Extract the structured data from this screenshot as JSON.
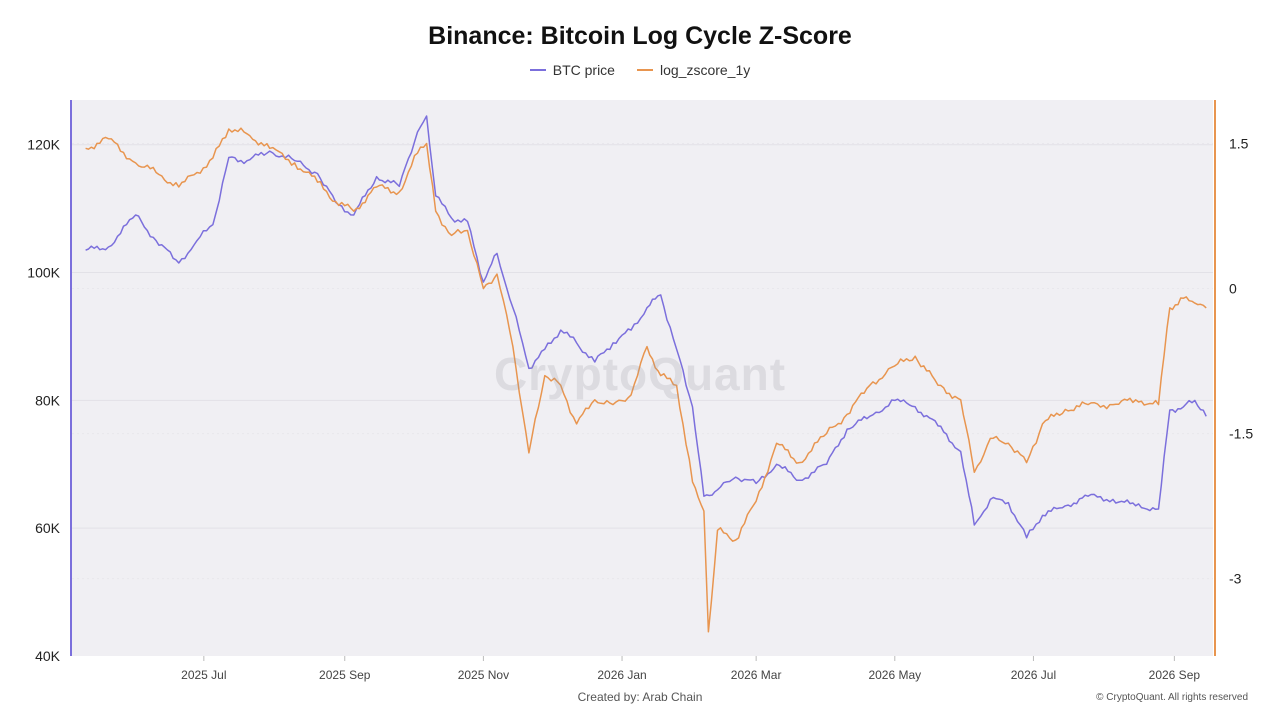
{
  "header": {
    "title": "Binance: Bitcoin Log Cycle Z-Score"
  },
  "legend": [
    {
      "label": "BTC price",
      "color": "#7b6fdc"
    },
    {
      "label": "log_zscore_1y",
      "color": "#e8954f"
    }
  ],
  "watermark": "CryptoQuant",
  "footer": {
    "creator": "Created by: Arab Chain",
    "copyright": "© CryptoQuant. All rights reserved"
  },
  "chart_data": {
    "type": "line",
    "title": "Binance: Bitcoin Log Cycle Z-Score",
    "x_ticks": [
      "2025 Jul",
      "2025 Sep",
      "2025 Nov",
      "2026 Jan",
      "2026 Mar",
      "2026 May",
      "2026 Jul",
      "2026 Sep"
    ],
    "y_left": {
      "ticks": [
        "40K",
        "60K",
        "80K",
        "100K",
        "120K"
      ],
      "lim": [
        40000,
        127000
      ],
      "color": "#7b6fdc"
    },
    "y_right": {
      "ticks": [
        "1.5",
        "0",
        "-1.5",
        "-3"
      ],
      "lim": [
        -3.8,
        1.95
      ],
      "color": "#e8954f"
    },
    "grid": true,
    "legend_position": "top-center",
    "series": [
      {
        "name": "BTC price",
        "axis": "left",
        "color": "#7b6fdc",
        "x": [
          "2025-05-10",
          "2025-05-20",
          "2025-06-01",
          "2025-06-10",
          "2025-06-20",
          "2025-06-28",
          "2025-07-05",
          "2025-07-12",
          "2025-07-20",
          "2025-07-30",
          "2025-08-10",
          "2025-08-20",
          "2025-08-28",
          "2025-09-05",
          "2025-09-15",
          "2025-09-25",
          "2025-10-03",
          "2025-10-07",
          "2025-10-11",
          "2025-10-18",
          "2025-10-25",
          "2025-11-01",
          "2025-11-07",
          "2025-11-14",
          "2025-11-21",
          "2025-11-28",
          "2025-12-05",
          "2025-12-12",
          "2025-12-20",
          "2025-12-28",
          "2026-01-05",
          "2026-01-12",
          "2026-01-18",
          "2026-01-25",
          "2026-02-01",
          "2026-02-06",
          "2026-02-12",
          "2026-02-20",
          "2026-03-01",
          "2026-03-10",
          "2026-03-20",
          "2026-04-01",
          "2026-04-10",
          "2026-04-20",
          "2026-05-01",
          "2026-05-10",
          "2026-05-20",
          "2026-05-30",
          "2026-06-05",
          "2026-06-12",
          "2026-06-20",
          "2026-06-28",
          "2026-07-05",
          "2026-07-15",
          "2026-07-25",
          "2026-08-05",
          "2026-08-15",
          "2026-08-25",
          "2026-08-30",
          "2026-09-05",
          "2026-09-10",
          "2026-09-15"
        ],
        "values": [
          103500,
          104000,
          109000,
          105000,
          101500,
          105000,
          107500,
          118000,
          117500,
          119000,
          117500,
          115500,
          111000,
          109000,
          115000,
          113500,
          122000,
          124500,
          112000,
          108500,
          108000,
          98500,
          103000,
          94500,
          85000,
          88000,
          91000,
          89000,
          86000,
          89000,
          91000,
          94500,
          96500,
          88000,
          79000,
          65000,
          66000,
          68000,
          67000,
          70000,
          67500,
          70000,
          75500,
          77500,
          80000,
          79000,
          76000,
          72000,
          60500,
          64500,
          64000,
          58500,
          62000,
          63500,
          65000,
          64500,
          63500,
          63000,
          78500,
          79000,
          80000,
          77500
        ]
      },
      {
        "name": "log_zscore_1y",
        "axis": "right",
        "color": "#e8954f",
        "x": [
          "2025-05-10",
          "2025-05-20",
          "2025-06-01",
          "2025-06-10",
          "2025-06-20",
          "2025-06-28",
          "2025-07-05",
          "2025-07-12",
          "2025-07-20",
          "2025-07-30",
          "2025-08-10",
          "2025-08-20",
          "2025-08-28",
          "2025-09-05",
          "2025-09-15",
          "2025-09-25",
          "2025-10-03",
          "2025-10-07",
          "2025-10-11",
          "2025-10-18",
          "2025-10-25",
          "2025-11-01",
          "2025-11-07",
          "2025-11-14",
          "2025-11-21",
          "2025-11-28",
          "2025-12-05",
          "2025-12-12",
          "2025-12-20",
          "2025-12-28",
          "2026-01-05",
          "2026-01-12",
          "2026-01-18",
          "2026-01-25",
          "2026-02-01",
          "2026-02-06",
          "2026-02-08",
          "2026-02-12",
          "2026-02-20",
          "2026-03-01",
          "2026-03-10",
          "2026-03-20",
          "2026-04-01",
          "2026-04-10",
          "2026-04-20",
          "2026-05-01",
          "2026-05-10",
          "2026-05-20",
          "2026-05-30",
          "2026-06-05",
          "2026-06-12",
          "2026-06-20",
          "2026-06-28",
          "2026-07-05",
          "2026-07-15",
          "2026-07-25",
          "2026-08-05",
          "2026-08-15",
          "2026-08-25",
          "2026-08-30",
          "2026-09-05",
          "2026-09-10",
          "2026-09-15"
        ],
        "values": [
          1.45,
          1.55,
          1.3,
          1.2,
          1.05,
          1.2,
          1.35,
          1.65,
          1.6,
          1.45,
          1.3,
          1.1,
          0.9,
          0.8,
          1.05,
          1.0,
          1.4,
          1.5,
          0.8,
          0.55,
          0.6,
          0.0,
          0.15,
          -0.6,
          -1.7,
          -0.9,
          -1.0,
          -1.4,
          -1.15,
          -1.2,
          -1.1,
          -0.6,
          -0.9,
          -1.0,
          -2.0,
          -2.3,
          -3.55,
          -2.5,
          -2.6,
          -2.2,
          -1.6,
          -1.8,
          -1.5,
          -1.3,
          -1.0,
          -0.8,
          -0.7,
          -1.0,
          -1.15,
          -1.9,
          -1.55,
          -1.6,
          -1.8,
          -1.4,
          -1.25,
          -1.2,
          -1.2,
          -1.15,
          -1.2,
          -0.2,
          -0.1,
          -0.15,
          -0.2
        ]
      }
    ]
  }
}
